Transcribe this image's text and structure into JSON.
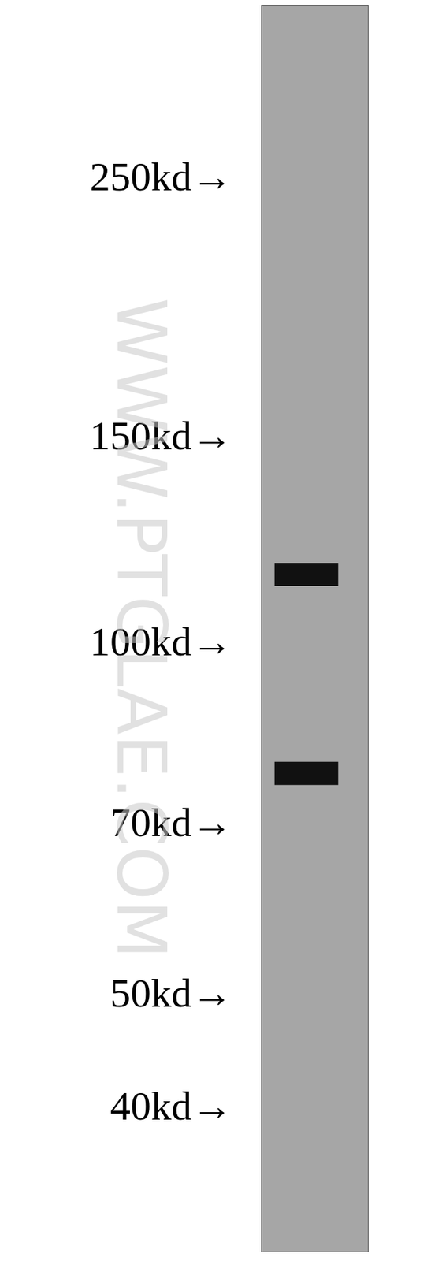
{
  "chart_data": {
    "type": "blot",
    "values": [
      114,
      77
    ],
    "color": "#111111",
    "log": "y",
    "ylim": [
      30,
      350
    ],
    "yticks": [
      {
        "value": 250,
        "label": "250kd→"
      },
      {
        "value": 150,
        "label": "150kd→"
      },
      {
        "value": 100,
        "label": "100kd→"
      },
      {
        "value": 70,
        "label": "70kd→"
      },
      {
        "value": 50,
        "label": "50kd→"
      },
      {
        "value": 40,
        "label": "40kd→"
      }
    ],
    "grid": false,
    "annotations": [
      "WWW.PTGLAE.COM"
    ]
  }
}
